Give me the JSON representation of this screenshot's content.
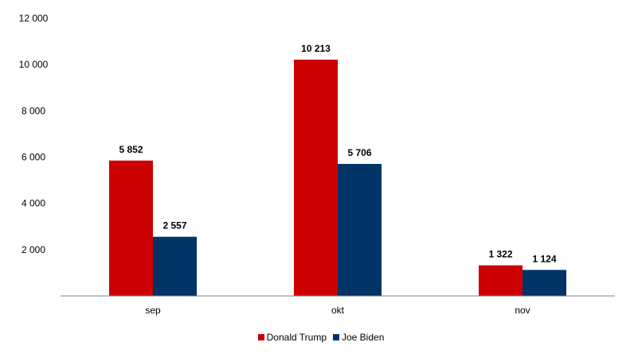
{
  "chart_data": {
    "type": "bar",
    "categories": [
      "sep",
      "okt",
      "nov"
    ],
    "series": [
      {
        "name": "Donald Trump",
        "color": "#cc0000",
        "values": [
          5852,
          10213,
          1322
        ],
        "labels": [
          "5 852",
          "10 213",
          "1 322"
        ]
      },
      {
        "name": "Joe Biden",
        "color": "#003366",
        "values": [
          2557,
          5706,
          1124
        ],
        "labels": [
          "2 557",
          "5 706",
          "1 124"
        ]
      }
    ],
    "y_ticks": [
      2000,
      4000,
      6000,
      8000,
      10000,
      12000
    ],
    "y_tick_labels": [
      "2 000",
      "4 000",
      "6 000",
      "8 000",
      "10 000",
      "12 000"
    ],
    "ylim": [
      0,
      12000
    ],
    "grid": false,
    "legend_position": "bottom"
  }
}
